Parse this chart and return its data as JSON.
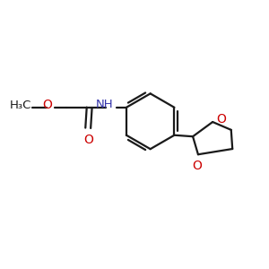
{
  "background_color": "#ffffff",
  "bond_color": "#1a1a1a",
  "oxygen_color": "#cc0000",
  "nitrogen_color": "#3333aa",
  "figsize": [
    3.0,
    3.0
  ],
  "dpi": 100,
  "xlim": [
    0,
    10
  ],
  "ylim": [
    0,
    10
  ]
}
